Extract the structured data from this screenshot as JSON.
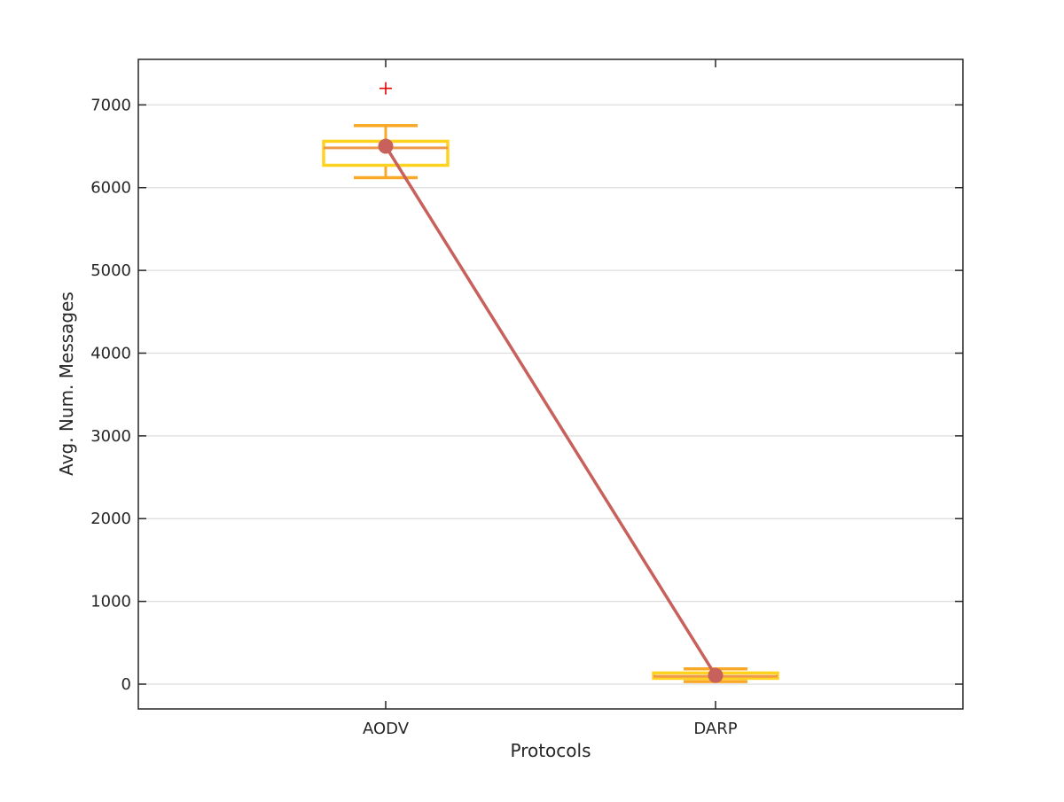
{
  "chart_data": {
    "type": "box",
    "title": "",
    "xlabel": "Protocols",
    "ylabel": "Avg. Num. Messages",
    "categories": [
      "AODV",
      "DARP"
    ],
    "ylim": [
      -300,
      7550
    ],
    "yticks": [
      0,
      1000,
      2000,
      3000,
      4000,
      5000,
      6000,
      7000
    ],
    "grid": "horizontal",
    "boxes": [
      {
        "category": "AODV",
        "whisker_low": 6120,
        "q1": 6270,
        "median": 6480,
        "q3": 6560,
        "whisker_high": 6750,
        "outliers": [
          7200
        ]
      },
      {
        "category": "DARP",
        "whisker_low": 30,
        "q1": 70,
        "median": 95,
        "q3": 135,
        "whisker_high": 185,
        "outliers": []
      }
    ],
    "mean_line": {
      "values": [
        6500,
        105
      ],
      "color": "#c8605c"
    },
    "colors": {
      "box": "#ffd21e",
      "whisker": "#f9a828",
      "median": "#ef9a4a",
      "outlier": "#e60000",
      "mean": "#c8605c",
      "grid": "#dddddd",
      "axis": "#262626"
    }
  }
}
